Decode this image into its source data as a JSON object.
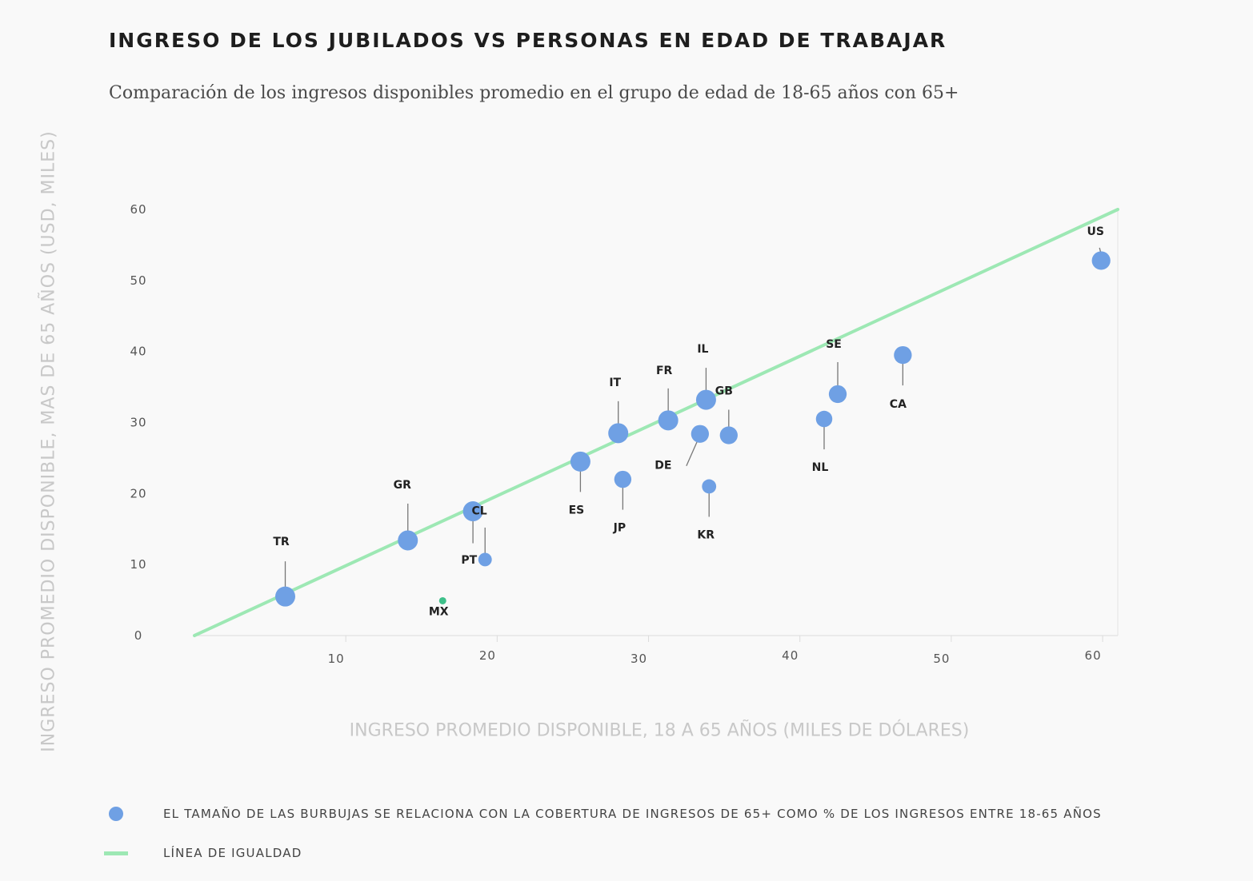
{
  "chart_data": {
    "type": "scatter",
    "title": "INGRESO DE LOS JUBILADOS VS PERSONAS EN EDAD DE TRABAJAR",
    "subtitle": "Comparación de los ingresos disponibles promedio en el grupo de edad de 18-65 años con 65+",
    "xlabel": "INGRESO PROMEDIO DISPONIBLE, 18 A 65 AÑOS (MILES DE DÓLARES)",
    "ylabel": "INGRESO PROMEDIO DISPONIBLE, MAS DE 65 AÑOS (USD, MILES)",
    "xlim": [
      0,
      61
    ],
    "ylim": [
      0,
      60
    ],
    "x_ticks": [
      "10",
      "20",
      "30",
      "40",
      "50",
      "60"
    ],
    "y_ticks": [
      "0",
      "10",
      "20",
      "30",
      "40",
      "50",
      "60"
    ],
    "grid": false,
    "equality_line": {
      "from": [
        0,
        0
      ],
      "to": [
        61,
        60
      ],
      "color": "#9de8b4"
    },
    "bubble_color": "#6fa0e4",
    "highlight_color": "#3ec08a",
    "points": [
      {
        "label": "TR",
        "x": 6.0,
        "y": 5.5,
        "size": 1.0
      },
      {
        "label": "GR",
        "x": 14.1,
        "y": 13.4,
        "size": 1.0
      },
      {
        "label": "MX",
        "x": 16.4,
        "y": 4.9,
        "size": 0.3,
        "highlight": true
      },
      {
        "label": "CL",
        "x": 18.4,
        "y": 17.5,
        "size": 1.0
      },
      {
        "label": "PT",
        "x": 19.2,
        "y": 10.7,
        "size": 0.55
      },
      {
        "label": "ES",
        "x": 25.5,
        "y": 24.5,
        "size": 1.0
      },
      {
        "label": "IT",
        "x": 28.0,
        "y": 28.5,
        "size": 1.0
      },
      {
        "label": "JP",
        "x": 28.3,
        "y": 22.0,
        "size": 0.8
      },
      {
        "label": "FR",
        "x": 31.3,
        "y": 30.3,
        "size": 1.0
      },
      {
        "label": "DE",
        "x": 33.4,
        "y": 28.4,
        "size": 0.85
      },
      {
        "label": "IL",
        "x": 33.8,
        "y": 33.2,
        "size": 1.0
      },
      {
        "label": "KR",
        "x": 34.0,
        "y": 21.0,
        "size": 0.6
      },
      {
        "label": "GB",
        "x": 35.3,
        "y": 28.2,
        "size": 0.85
      },
      {
        "label": "NL",
        "x": 41.6,
        "y": 30.5,
        "size": 0.75
      },
      {
        "label": "SE",
        "x": 42.5,
        "y": 34.0,
        "size": 0.85
      },
      {
        "label": "CA",
        "x": 46.8,
        "y": 39.5,
        "size": 0.85
      },
      {
        "label": "US",
        "x": 59.9,
        "y": 52.8,
        "size": 0.9
      }
    ]
  },
  "legend": {
    "bubble_text": "EL TAMAÑO DE LAS BURBUJAS SE RELACIONA CON LA COBERTURA DE INGRESOS DE 65+ COMO % DE LOS INGRESOS ENTRE 18-65 AÑOS",
    "line_text": "LÍNEA DE IGUALDAD"
  }
}
